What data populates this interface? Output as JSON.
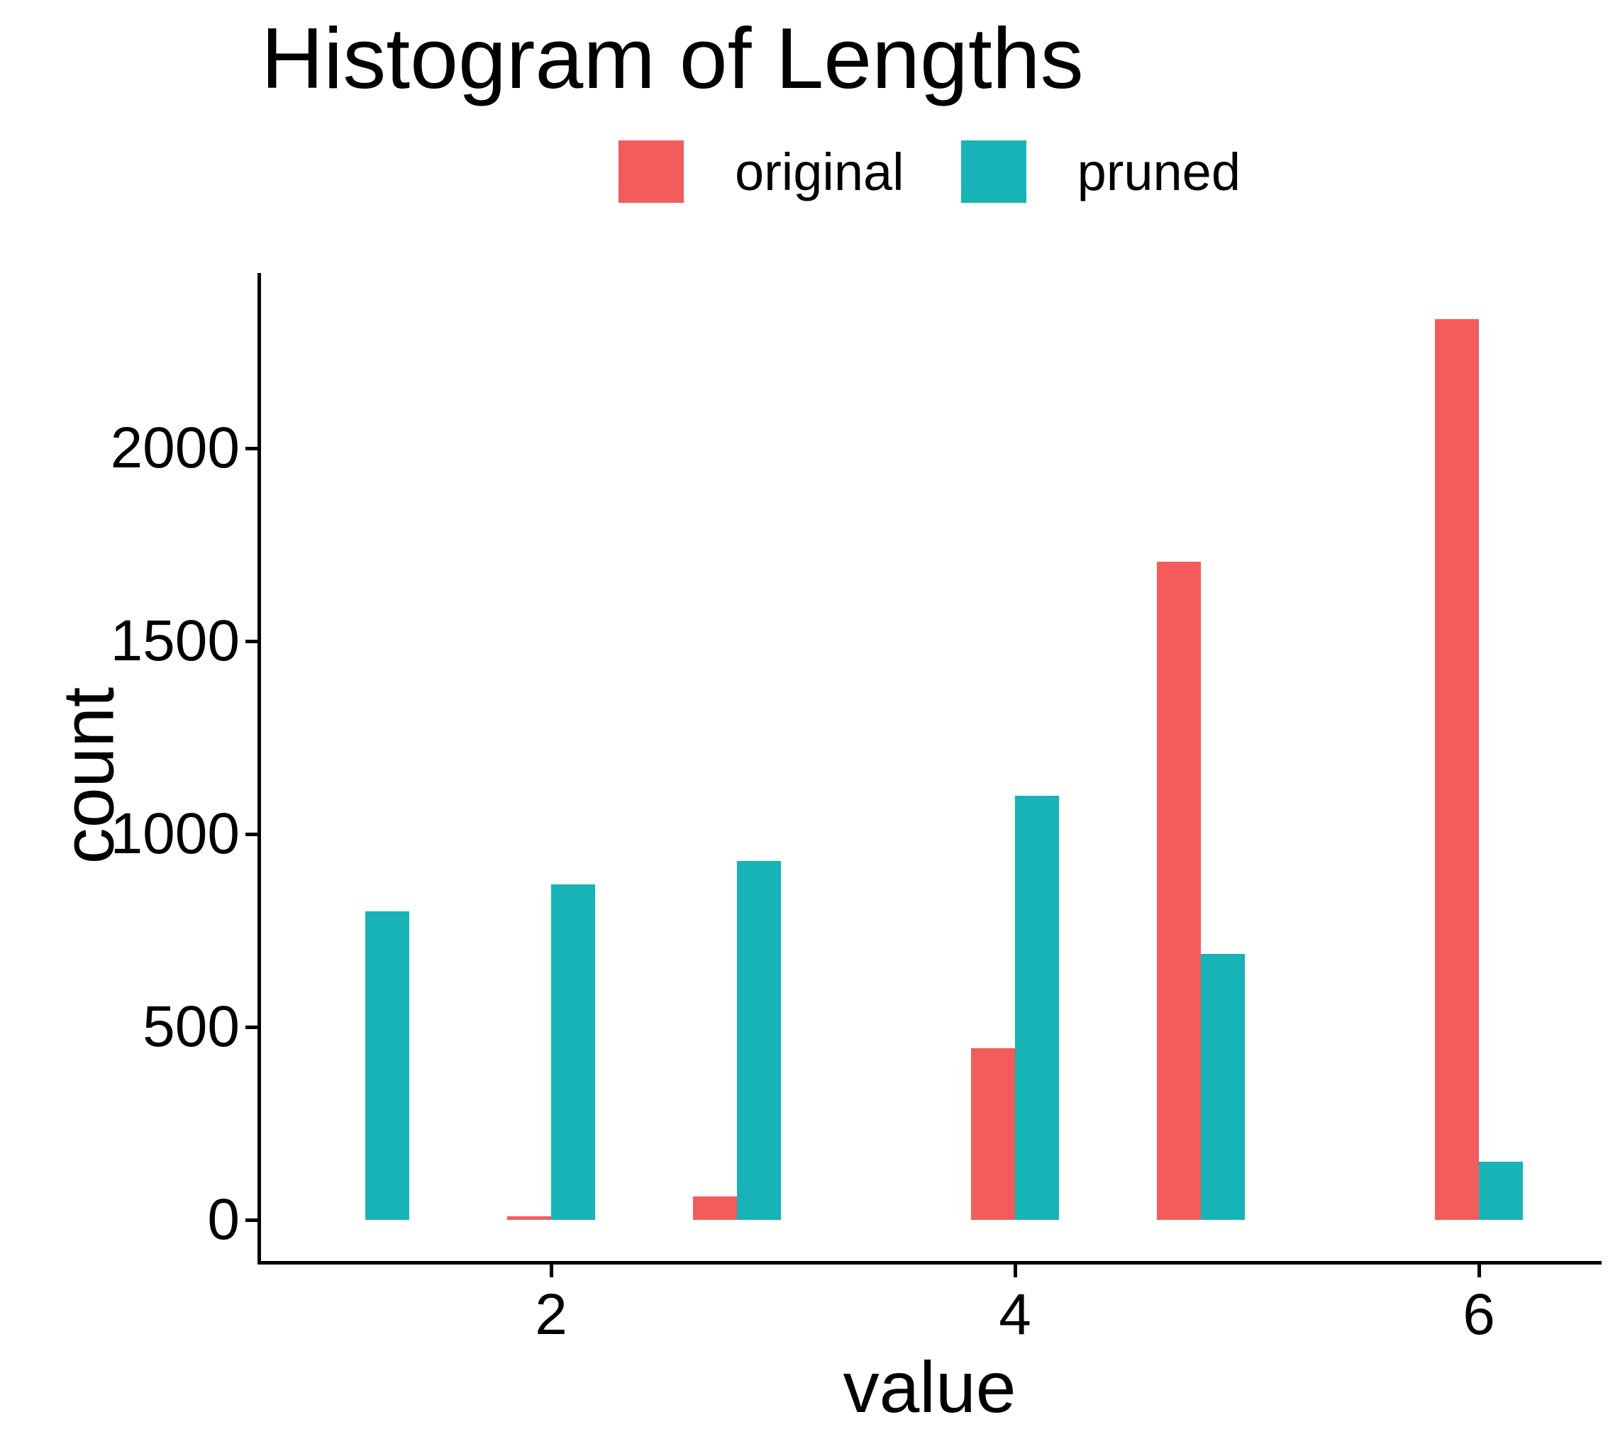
{
  "title": "Histogram of Lengths",
  "legend": {
    "items": [
      {
        "label": "original",
        "color": "#F35C5B"
      },
      {
        "label": "pruned",
        "color": "#17B3B6"
      }
    ]
  },
  "axes": {
    "x": {
      "label": "value",
      "ticks": [
        2,
        4,
        6
      ]
    },
    "y": {
      "label": "count",
      "ticks": [
        0,
        500,
        1000,
        1500,
        2000
      ]
    }
  },
  "chart_data": {
    "type": "bar",
    "subtype": "dodged-histogram",
    "title": "Histogram of Lengths",
    "xlabel": "value",
    "ylabel": "count",
    "x_bin_centers": [
      1.2,
      2.0,
      2.8,
      4.0,
      4.8,
      6.0
    ],
    "series": [
      {
        "name": "original",
        "color": "#F35C5B",
        "values": [
          0,
          10,
          60,
          445,
          1705,
          2335
        ]
      },
      {
        "name": "pruned",
        "color": "#17B3B6",
        "values": [
          800,
          870,
          930,
          1100,
          690,
          150
        ]
      }
    ],
    "x_ticks": [
      2,
      4,
      6
    ],
    "y_ticks": [
      0,
      500,
      1000,
      1500,
      2000
    ],
    "xlim": [
      0.73,
      6.55
    ],
    "ylim": [
      0,
      2450
    ],
    "grid": false,
    "legend_position": "top",
    "axis_line_color": "#000000",
    "background_color": "#ffffff"
  }
}
